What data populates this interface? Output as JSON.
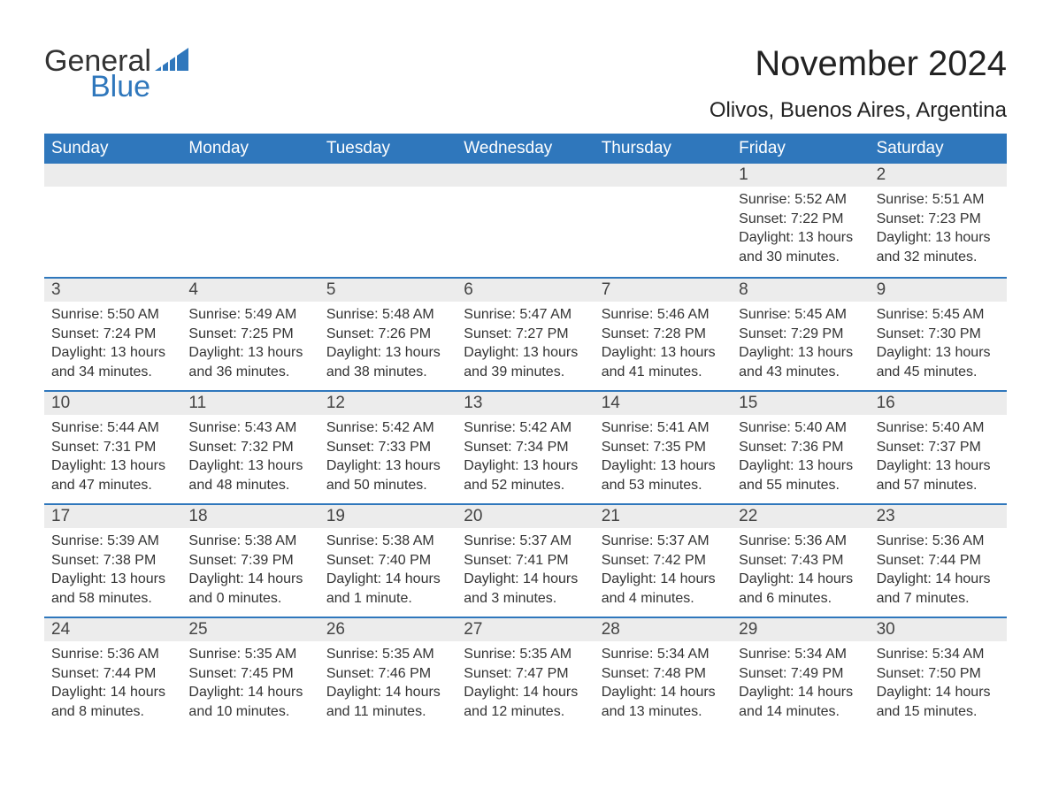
{
  "brand": {
    "word1": "General",
    "word2": "Blue",
    "accent_color": "#2f77bc"
  },
  "title": "November 2024",
  "location": "Olivos, Buenos Aires, Argentina",
  "weekday_header_bg": "#2f77bc",
  "weekday_header_fg": "#ffffff",
  "daynum_bar_bg": "#ececec",
  "week_divider_color": "#2f77bc",
  "weekdays": [
    "Sunday",
    "Monday",
    "Tuesday",
    "Wednesday",
    "Thursday",
    "Friday",
    "Saturday"
  ],
  "first_weekday_index": 5,
  "days": [
    {
      "n": 1,
      "sunrise": "5:52 AM",
      "sunset": "7:22 PM",
      "daylight": "13 hours and 30 minutes."
    },
    {
      "n": 2,
      "sunrise": "5:51 AM",
      "sunset": "7:23 PM",
      "daylight": "13 hours and 32 minutes."
    },
    {
      "n": 3,
      "sunrise": "5:50 AM",
      "sunset": "7:24 PM",
      "daylight": "13 hours and 34 minutes."
    },
    {
      "n": 4,
      "sunrise": "5:49 AM",
      "sunset": "7:25 PM",
      "daylight": "13 hours and 36 minutes."
    },
    {
      "n": 5,
      "sunrise": "5:48 AM",
      "sunset": "7:26 PM",
      "daylight": "13 hours and 38 minutes."
    },
    {
      "n": 6,
      "sunrise": "5:47 AM",
      "sunset": "7:27 PM",
      "daylight": "13 hours and 39 minutes."
    },
    {
      "n": 7,
      "sunrise": "5:46 AM",
      "sunset": "7:28 PM",
      "daylight": "13 hours and 41 minutes."
    },
    {
      "n": 8,
      "sunrise": "5:45 AM",
      "sunset": "7:29 PM",
      "daylight": "13 hours and 43 minutes."
    },
    {
      "n": 9,
      "sunrise": "5:45 AM",
      "sunset": "7:30 PM",
      "daylight": "13 hours and 45 minutes."
    },
    {
      "n": 10,
      "sunrise": "5:44 AM",
      "sunset": "7:31 PM",
      "daylight": "13 hours and 47 minutes."
    },
    {
      "n": 11,
      "sunrise": "5:43 AM",
      "sunset": "7:32 PM",
      "daylight": "13 hours and 48 minutes."
    },
    {
      "n": 12,
      "sunrise": "5:42 AM",
      "sunset": "7:33 PM",
      "daylight": "13 hours and 50 minutes."
    },
    {
      "n": 13,
      "sunrise": "5:42 AM",
      "sunset": "7:34 PM",
      "daylight": "13 hours and 52 minutes."
    },
    {
      "n": 14,
      "sunrise": "5:41 AM",
      "sunset": "7:35 PM",
      "daylight": "13 hours and 53 minutes."
    },
    {
      "n": 15,
      "sunrise": "5:40 AM",
      "sunset": "7:36 PM",
      "daylight": "13 hours and 55 minutes."
    },
    {
      "n": 16,
      "sunrise": "5:40 AM",
      "sunset": "7:37 PM",
      "daylight": "13 hours and 57 minutes."
    },
    {
      "n": 17,
      "sunrise": "5:39 AM",
      "sunset": "7:38 PM",
      "daylight": "13 hours and 58 minutes."
    },
    {
      "n": 18,
      "sunrise": "5:38 AM",
      "sunset": "7:39 PM",
      "daylight": "14 hours and 0 minutes."
    },
    {
      "n": 19,
      "sunrise": "5:38 AM",
      "sunset": "7:40 PM",
      "daylight": "14 hours and 1 minute."
    },
    {
      "n": 20,
      "sunrise": "5:37 AM",
      "sunset": "7:41 PM",
      "daylight": "14 hours and 3 minutes."
    },
    {
      "n": 21,
      "sunrise": "5:37 AM",
      "sunset": "7:42 PM",
      "daylight": "14 hours and 4 minutes."
    },
    {
      "n": 22,
      "sunrise": "5:36 AM",
      "sunset": "7:43 PM",
      "daylight": "14 hours and 6 minutes."
    },
    {
      "n": 23,
      "sunrise": "5:36 AM",
      "sunset": "7:44 PM",
      "daylight": "14 hours and 7 minutes."
    },
    {
      "n": 24,
      "sunrise": "5:36 AM",
      "sunset": "7:44 PM",
      "daylight": "14 hours and 8 minutes."
    },
    {
      "n": 25,
      "sunrise": "5:35 AM",
      "sunset": "7:45 PM",
      "daylight": "14 hours and 10 minutes."
    },
    {
      "n": 26,
      "sunrise": "5:35 AM",
      "sunset": "7:46 PM",
      "daylight": "14 hours and 11 minutes."
    },
    {
      "n": 27,
      "sunrise": "5:35 AM",
      "sunset": "7:47 PM",
      "daylight": "14 hours and 12 minutes."
    },
    {
      "n": 28,
      "sunrise": "5:34 AM",
      "sunset": "7:48 PM",
      "daylight": "14 hours and 13 minutes."
    },
    {
      "n": 29,
      "sunrise": "5:34 AM",
      "sunset": "7:49 PM",
      "daylight": "14 hours and 14 minutes."
    },
    {
      "n": 30,
      "sunrise": "5:34 AM",
      "sunset": "7:50 PM",
      "daylight": "14 hours and 15 minutes."
    }
  ],
  "labels": {
    "sunrise": "Sunrise:",
    "sunset": "Sunset:",
    "daylight": "Daylight:"
  }
}
